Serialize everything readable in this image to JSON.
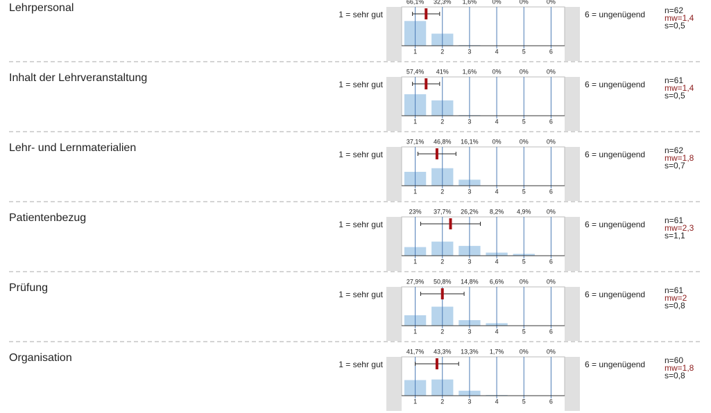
{
  "chart_data": [
    {
      "type": "bar",
      "title": "Lehrpersonal",
      "left_label": "1 = sehr gut",
      "right_label": "6 = ungenügend",
      "x": [
        1,
        2,
        3,
        4,
        5,
        6
      ],
      "values": [
        66.1,
        32.3,
        1.6,
        0,
        0,
        0
      ],
      "value_labels": [
        "66,1%",
        "32,3%",
        "1,6%",
        "0%",
        "0%",
        "0%"
      ],
      "xlim": [
        0.5,
        6.5
      ],
      "xticks": [
        1,
        2,
        3,
        4,
        5,
        6
      ],
      "ylim": [
        0,
        100
      ],
      "color": "#b7d4ec",
      "n": {
        "value": 62,
        "label": "n=62"
      },
      "mean": {
        "value": 1.4,
        "label": "mw=1,4"
      },
      "sd": {
        "value": 0.5,
        "label": "s=0,5"
      }
    },
    {
      "type": "bar",
      "title": "Inhalt der Lehrveranstaltung",
      "left_label": "1 = sehr gut",
      "right_label": "6 = ungenügend",
      "x": [
        1,
        2,
        3,
        4,
        5,
        6
      ],
      "values": [
        57.4,
        41,
        1.6,
        0,
        0,
        0
      ],
      "value_labels": [
        "57,4%",
        "41%",
        "1,6%",
        "0%",
        "0%",
        "0%"
      ],
      "xlim": [
        0.5,
        6.5
      ],
      "xticks": [
        1,
        2,
        3,
        4,
        5,
        6
      ],
      "ylim": [
        0,
        100
      ],
      "color": "#b7d4ec",
      "n": {
        "value": 61,
        "label": "n=61"
      },
      "mean": {
        "value": 1.4,
        "label": "mw=1,4"
      },
      "sd": {
        "value": 0.5,
        "label": "s=0,5"
      }
    },
    {
      "type": "bar",
      "title": "Lehr- und Lernmaterialien",
      "left_label": "1 = sehr gut",
      "right_label": "6 = ungenügend",
      "x": [
        1,
        2,
        3,
        4,
        5,
        6
      ],
      "values": [
        37.1,
        46.8,
        16.1,
        0,
        0,
        0
      ],
      "value_labels": [
        "37,1%",
        "46,8%",
        "16,1%",
        "0%",
        "0%",
        "0%"
      ],
      "xlim": [
        0.5,
        6.5
      ],
      "xticks": [
        1,
        2,
        3,
        4,
        5,
        6
      ],
      "ylim": [
        0,
        100
      ],
      "color": "#b7d4ec",
      "n": {
        "value": 62,
        "label": "n=62"
      },
      "mean": {
        "value": 1.8,
        "label": "mw=1,8"
      },
      "sd": {
        "value": 0.7,
        "label": "s=0,7"
      }
    },
    {
      "type": "bar",
      "title": "Patientenbezug",
      "left_label": "1 = sehr gut",
      "right_label": "6 = ungenügend",
      "x": [
        1,
        2,
        3,
        4,
        5,
        6
      ],
      "values": [
        23,
        37.7,
        26.2,
        8.2,
        4.9,
        0
      ],
      "value_labels": [
        "23%",
        "37,7%",
        "26,2%",
        "8,2%",
        "4,9%",
        "0%"
      ],
      "xlim": [
        0.5,
        6.5
      ],
      "xticks": [
        1,
        2,
        3,
        4,
        5,
        6
      ],
      "ylim": [
        0,
        100
      ],
      "color": "#b7d4ec",
      "n": {
        "value": 61,
        "label": "n=61"
      },
      "mean": {
        "value": 2.3,
        "label": "mw=2,3"
      },
      "sd": {
        "value": 1.1,
        "label": "s=1,1"
      }
    },
    {
      "type": "bar",
      "title": "Prüfung",
      "left_label": "1 = sehr gut",
      "right_label": "6 = ungenügend",
      "x": [
        1,
        2,
        3,
        4,
        5,
        6
      ],
      "values": [
        27.9,
        50.8,
        14.8,
        6.6,
        0,
        0
      ],
      "value_labels": [
        "27,9%",
        "50,8%",
        "14,8%",
        "6,6%",
        "0%",
        "0%"
      ],
      "xlim": [
        0.5,
        6.5
      ],
      "xticks": [
        1,
        2,
        3,
        4,
        5,
        6
      ],
      "ylim": [
        0,
        100
      ],
      "color": "#b7d4ec",
      "n": {
        "value": 61,
        "label": "n=61"
      },
      "mean": {
        "value": 2,
        "label": "mw=2"
      },
      "sd": {
        "value": 0.8,
        "label": "s=0,8"
      }
    },
    {
      "type": "bar",
      "title": "Organisation",
      "left_label": "1 = sehr gut",
      "right_label": "6 = ungenügend",
      "x": [
        1,
        2,
        3,
        4,
        5,
        6
      ],
      "values": [
        41.7,
        43.3,
        13.3,
        1.7,
        0,
        0
      ],
      "value_labels": [
        "41,7%",
        "43,3%",
        "13,3%",
        "1,7%",
        "0%",
        "0%"
      ],
      "xlim": [
        0.5,
        6.5
      ],
      "xticks": [
        1,
        2,
        3,
        4,
        5,
        6
      ],
      "ylim": [
        0,
        100
      ],
      "color": "#b7d4ec",
      "n": {
        "value": 60,
        "label": "n=60"
      },
      "mean": {
        "value": 1.8,
        "label": "mw=1,8"
      },
      "sd": {
        "value": 0.8,
        "label": "s=0,8"
      }
    }
  ]
}
